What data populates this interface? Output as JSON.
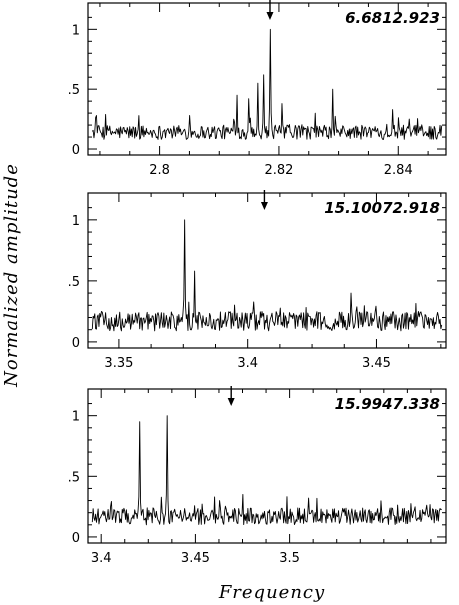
{
  "chart_data": [
    {
      "type": "line",
      "title": "6.6812.923",
      "xlabel": "Frequency",
      "ylabel": "Normalized amplitude",
      "xlim": [
        2.788,
        2.848
      ],
      "ylim": [
        -0.05,
        1.22
      ],
      "xticks": [
        2.8,
        2.82,
        2.84
      ],
      "xtick_labels": [
        "2.8",
        "2.82",
        "2.84"
      ],
      "yticks": [
        0,
        0.5,
        1
      ],
      "ytick_labels": [
        "0",
        ".5",
        "1"
      ],
      "arrow_x": 2.8185,
      "noise_level": 0.14,
      "noise_spread": 0.06,
      "peaks": [
        {
          "x": 2.8185,
          "y": 1.0
        },
        {
          "x": 2.8175,
          "y": 0.62
        },
        {
          "x": 2.8165,
          "y": 0.55
        },
        {
          "x": 2.815,
          "y": 0.42
        },
        {
          "x": 2.813,
          "y": 0.45
        },
        {
          "x": 2.8205,
          "y": 0.38
        },
        {
          "x": 2.829,
          "y": 0.5
        },
        {
          "x": 2.805,
          "y": 0.28
        },
        {
          "x": 2.839,
          "y": 0.33
        }
      ]
    },
    {
      "type": "line",
      "title": "15.10072.918",
      "xlabel": "Frequency",
      "ylabel": "Normalized amplitude",
      "xlim": [
        3.338,
        3.477
      ],
      "ylim": [
        -0.05,
        1.22
      ],
      "xticks": [
        3.35,
        3.4,
        3.45
      ],
      "xtick_labels": [
        "3.35",
        "3.4",
        "3.45"
      ],
      "yticks": [
        0,
        0.5,
        1
      ],
      "ytick_labels": [
        "0",
        ".5",
        "1"
      ],
      "arrow_x": 3.4065,
      "noise_level": 0.17,
      "noise_spread": 0.08,
      "peaks": [
        {
          "x": 3.3755,
          "y": 1.0
        },
        {
          "x": 3.3795,
          "y": 0.58
        },
        {
          "x": 3.44,
          "y": 0.4
        }
      ]
    },
    {
      "type": "line",
      "title": "15.9947.338",
      "xlabel": "Frequency",
      "ylabel": "Normalized amplitude",
      "xlim": [
        3.393,
        3.583
      ],
      "ylim": [
        -0.05,
        1.22
      ],
      "xticks": [
        3.4,
        3.45,
        3.5
      ],
      "xtick_labels": [
        "3.4",
        "3.45",
        "3.5"
      ],
      "yticks": [
        0,
        0.5,
        1
      ],
      "ytick_labels": [
        "0",
        ".5",
        "1"
      ],
      "arrow_x": 3.469,
      "noise_level": 0.17,
      "noise_spread": 0.07,
      "peaks": [
        {
          "x": 3.4205,
          "y": 0.95
        },
        {
          "x": 3.435,
          "y": 1.0
        },
        {
          "x": 3.46,
          "y": 0.33
        },
        {
          "x": 3.51,
          "y": 0.32
        }
      ]
    }
  ],
  "axes": {
    "xlabel": "Frequency",
    "ylabel": "Normalized amplitude"
  }
}
